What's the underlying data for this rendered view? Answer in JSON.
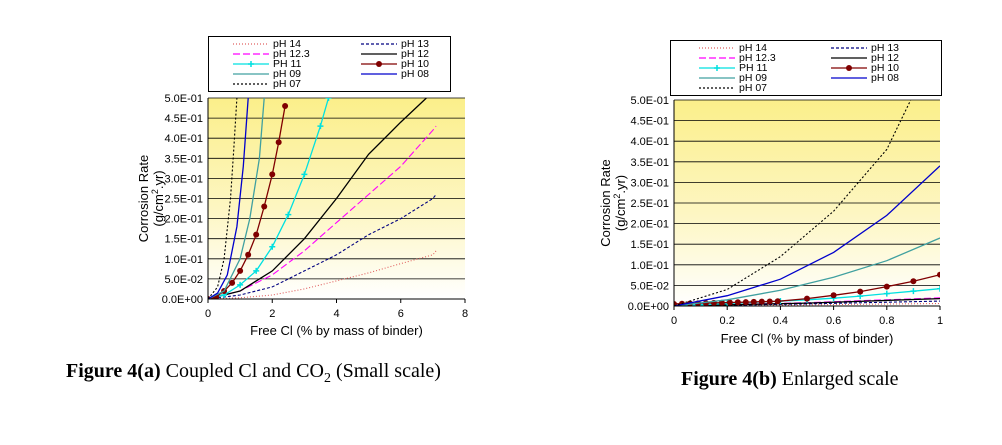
{
  "chart_data": [
    {
      "type": "line",
      "xlabel": "Free Cl (% by mass of binder)",
      "ylabel": "Corrosion Rate (g/cm2.yr)",
      "ylabel_line1": "Corrosion Rate",
      "ylabel_line2_pre": "(g/cm",
      "ylabel_line2_sup": "2",
      "ylabel_line2_post": ".yr)",
      "xlim": [
        0,
        8
      ],
      "ylim": [
        0,
        0.5
      ],
      "x_ticks": [
        "0",
        "2",
        "4",
        "6",
        "8"
      ],
      "x_tick_values": [
        0,
        2,
        4,
        6,
        8
      ],
      "y_ticks": [
        "0.0E+00",
        "5.0E-02",
        "1.0E-01",
        "1.5E-01",
        "2.0E-01",
        "2.5E-01",
        "3.0E-01",
        "3.5E-01",
        "4.0E-01",
        "4.5E-01",
        "5.0E-01"
      ],
      "y_tick_values": [
        0,
        0.05,
        0.1,
        0.15,
        0.2,
        0.25,
        0.3,
        0.35,
        0.4,
        0.45,
        0.5
      ],
      "legend_position": "top",
      "background": "yellow gradient with horizontal gridlines",
      "series": [
        {
          "name": "pH 14",
          "color": "#e06060",
          "dash": "1,2",
          "x": [
            0,
            1,
            2,
            3,
            4,
            5,
            6,
            7,
            7.1
          ],
          "y": [
            0,
            0.003,
            0.01,
            0.025,
            0.045,
            0.065,
            0.088,
            0.11,
            0.12
          ]
        },
        {
          "name": "pH 13",
          "color": "#000080",
          "dash": "3,2",
          "x": [
            0,
            1,
            2,
            3,
            4,
            5,
            6,
            7,
            7.1
          ],
          "y": [
            0,
            0.01,
            0.03,
            0.07,
            0.11,
            0.16,
            0.2,
            0.25,
            0.26
          ]
        },
        {
          "name": "pH 12.3",
          "color": "#ff00ff",
          "dash": "7,3",
          "x": [
            0,
            1,
            2,
            3,
            4,
            5,
            6,
            7,
            7.1
          ],
          "y": [
            0,
            0.02,
            0.06,
            0.12,
            0.19,
            0.26,
            0.33,
            0.42,
            0.43
          ]
        },
        {
          "name": "pH 12",
          "color": "#000000",
          "dash": "",
          "x": [
            0,
            1,
            2,
            3,
            4,
            5,
            6,
            6.8
          ],
          "y": [
            0,
            0.02,
            0.07,
            0.15,
            0.25,
            0.36,
            0.44,
            0.5
          ]
        },
        {
          "name": "PH 11",
          "color": "#00e0e0",
          "dash": "",
          "marker": "cross",
          "x": [
            0,
            0.5,
            1,
            1.5,
            2,
            2.5,
            3,
            3.5,
            3.75
          ],
          "y": [
            0,
            0.01,
            0.035,
            0.07,
            0.13,
            0.21,
            0.31,
            0.43,
            0.5
          ]
        },
        {
          "name": "pH 10",
          "color": "#800000",
          "dash": "",
          "marker": "dot",
          "x": [
            0,
            0.25,
            0.5,
            0.75,
            1,
            1.25,
            1.5,
            1.75,
            2,
            2.2,
            2.4
          ],
          "y": [
            0,
            0.005,
            0.02,
            0.04,
            0.07,
            0.11,
            0.16,
            0.23,
            0.31,
            0.39,
            0.48
          ]
        },
        {
          "name": "pH 09",
          "color": "#40a0a0",
          "dash": "",
          "x": [
            0,
            0.5,
            1,
            1.3,
            1.6,
            1.75
          ],
          "y": [
            0,
            0.02,
            0.1,
            0.2,
            0.35,
            0.5
          ]
        },
        {
          "name": "pH 08",
          "color": "#0000cc",
          "dash": "",
          "x": [
            0,
            0.3,
            0.6,
            0.9,
            1.1,
            1.25
          ],
          "y": [
            0,
            0.015,
            0.06,
            0.18,
            0.33,
            0.5
          ]
        },
        {
          "name": "pH 07",
          "color": "#000000",
          "dash": "2,2",
          "x": [
            0,
            0.3,
            0.5,
            0.7,
            0.8,
            0.9
          ],
          "y": [
            0,
            0.03,
            0.1,
            0.25,
            0.37,
            0.5
          ]
        }
      ]
    },
    {
      "type": "line",
      "xlabel": "Free Cl (% by mass of binder)",
      "ylabel": "Corrosion Rate (g/cm2.yr)",
      "ylabel_line1": "Corrosion Rate",
      "ylabel_line2_pre": "(g/cm",
      "ylabel_line2_sup": "2",
      "ylabel_line2_post": ".yr)",
      "xlim": [
        0,
        1
      ],
      "ylim": [
        0,
        0.5
      ],
      "x_ticks": [
        "0",
        "0.2",
        "0.4",
        "0.6",
        "0.8",
        "1"
      ],
      "x_tick_values": [
        0,
        0.2,
        0.4,
        0.6,
        0.8,
        1
      ],
      "y_ticks": [
        "0.0E+00",
        "5.0E-02",
        "1.0E-01",
        "1.5E-01",
        "2.0E-01",
        "2.5E-01",
        "3.0E-01",
        "3.5E-01",
        "4.0E-01",
        "4.5E-01",
        "5.0E-01"
      ],
      "y_tick_values": [
        0,
        0.05,
        0.1,
        0.15,
        0.2,
        0.25,
        0.3,
        0.35,
        0.4,
        0.45,
        0.5
      ],
      "legend_position": "top",
      "background": "yellow gradient with horizontal gridlines",
      "series": [
        {
          "name": "pH 14",
          "color": "#e06060",
          "dash": "1,2",
          "x": [
            0,
            0.5,
            1
          ],
          "y": [
            0,
            0.003,
            0.006
          ]
        },
        {
          "name": "pH 13",
          "color": "#000080",
          "dash": "3,2",
          "x": [
            0,
            0.5,
            1
          ],
          "y": [
            0,
            0.005,
            0.012
          ]
        },
        {
          "name": "pH 12.3",
          "color": "#ff00ff",
          "dash": "7,3",
          "x": [
            0,
            0.5,
            1
          ],
          "y": [
            0,
            0.008,
            0.02
          ]
        },
        {
          "name": "pH 12",
          "color": "#000000",
          "dash": "",
          "x": [
            0,
            0.5,
            1
          ],
          "y": [
            0,
            0.007,
            0.018
          ]
        },
        {
          "name": "PH 11",
          "color": "#00e0e0",
          "dash": "",
          "marker": "cross",
          "x": [
            0,
            0.1,
            0.2,
            0.3,
            0.4,
            0.5,
            0.6,
            0.7,
            0.8,
            0.9,
            1
          ],
          "y": [
            0,
            0.003,
            0.006,
            0.009,
            0.012,
            0.015,
            0.019,
            0.024,
            0.03,
            0.036,
            0.042
          ]
        },
        {
          "name": "pH 10",
          "color": "#800000",
          "dash": "",
          "marker": "dot",
          "x": [
            0,
            0.03,
            0.06,
            0.09,
            0.12,
            0.15,
            0.18,
            0.21,
            0.24,
            0.27,
            0.3,
            0.33,
            0.36,
            0.39,
            0.5,
            0.6,
            0.7,
            0.8,
            0.9,
            1
          ],
          "y": [
            0.005,
            0.0055,
            0.006,
            0.0065,
            0.007,
            0.0075,
            0.008,
            0.0085,
            0.009,
            0.0095,
            0.01,
            0.0105,
            0.011,
            0.0115,
            0.018,
            0.026,
            0.035,
            0.047,
            0.06,
            0.076
          ]
        },
        {
          "name": "pH 09",
          "color": "#40a0a0",
          "dash": "",
          "x": [
            0,
            0.2,
            0.4,
            0.6,
            0.8,
            1
          ],
          "y": [
            0,
            0.015,
            0.038,
            0.07,
            0.11,
            0.165
          ]
        },
        {
          "name": "pH 08",
          "color": "#0000cc",
          "dash": "",
          "x": [
            0,
            0.2,
            0.4,
            0.6,
            0.8,
            1
          ],
          "y": [
            0,
            0.025,
            0.065,
            0.13,
            0.22,
            0.34
          ]
        },
        {
          "name": "pH 07",
          "color": "#000000",
          "dash": "2,2",
          "x": [
            0,
            0.2,
            0.4,
            0.6,
            0.8,
            0.89
          ],
          "y": [
            0,
            0.04,
            0.12,
            0.23,
            0.38,
            0.5
          ]
        }
      ]
    }
  ],
  "legend": {
    "items": [
      {
        "label": "pH 14",
        "color": "#e06060",
        "dash": "1,2"
      },
      {
        "label": "pH 13",
        "color": "#000080",
        "dash": "3,2"
      },
      {
        "label": "pH 12.3",
        "color": "#ff00ff",
        "dash": "7,3"
      },
      {
        "label": "pH 12",
        "color": "#000000",
        "dash": ""
      },
      {
        "label": "PH 11",
        "color": "#00e0e0",
        "dash": "",
        "marker": "cross"
      },
      {
        "label": "pH 10",
        "color": "#800000",
        "dash": "",
        "marker": "dot"
      },
      {
        "label": "pH 09",
        "color": "#40a0a0",
        "dash": ""
      },
      {
        "label": "pH 08",
        "color": "#0000cc",
        "dash": ""
      },
      {
        "label": "pH 07",
        "color": "#000000",
        "dash": "2,2"
      }
    ]
  },
  "captions": {
    "a_bold": "Figure 4(",
    "a_bold_letter": "a",
    "a_bold_close": ")",
    "a_text_pre": " Coupled Cl and CO",
    "a_sub": "2",
    "a_text_post": " (Small scale)",
    "b_bold": "Figure 4(",
    "b_bold_letter": "b",
    "b_bold_close": ")",
    "b_text": " Enlarged scale"
  }
}
